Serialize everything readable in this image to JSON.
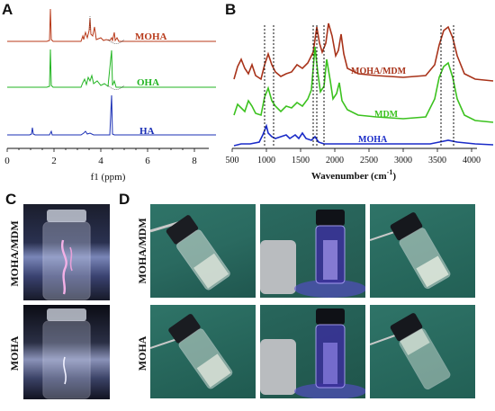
{
  "panels": {
    "A": {
      "letter": "A",
      "traces": [
        {
          "name": "MOHA",
          "color": "#b83a1a"
        },
        {
          "name": "OHA",
          "color": "#22b522"
        },
        {
          "name": "HA",
          "color": "#1a2fb5"
        }
      ],
      "x_ticks": [
        "0",
        "2",
        "4",
        "6",
        "8"
      ],
      "x_label": "f1 (ppm)"
    },
    "B": {
      "letter": "B",
      "traces": [
        {
          "name": "MOHA/MDM",
          "color": "#a8331a"
        },
        {
          "name": "MDM",
          "color": "#3cc21f"
        },
        {
          "name": "MOHA",
          "color": "#1a2bc8"
        }
      ],
      "x_ticks": [
        "500",
        "1000",
        "1500",
        "2000",
        "2500",
        "3000",
        "3500",
        "4000"
      ],
      "x_label": "Wavenumber (cm",
      "x_label_sup": "-1",
      "x_label_end": ")"
    },
    "C": {
      "letter": "C",
      "labels": [
        "MOHA/MDM",
        "MOHA"
      ]
    },
    "D": {
      "letter": "D",
      "row_labels": [
        "MOHA/MDM",
        "MOHA"
      ]
    }
  }
}
